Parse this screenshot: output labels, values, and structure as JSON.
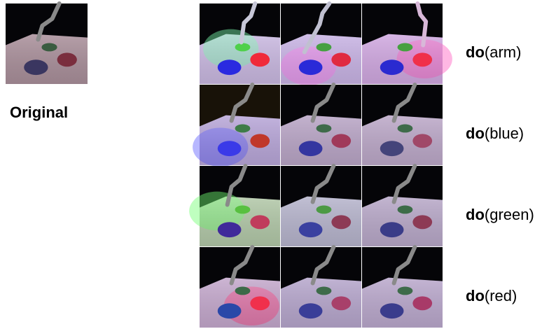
{
  "original_label": "Original",
  "rows": [
    {
      "op": "do",
      "arg": "(arm)"
    },
    {
      "op": "do",
      "arg": "(blue)"
    },
    {
      "op": "do",
      "arg": "(green)"
    },
    {
      "op": "do",
      "arg": "(red)"
    }
  ]
}
